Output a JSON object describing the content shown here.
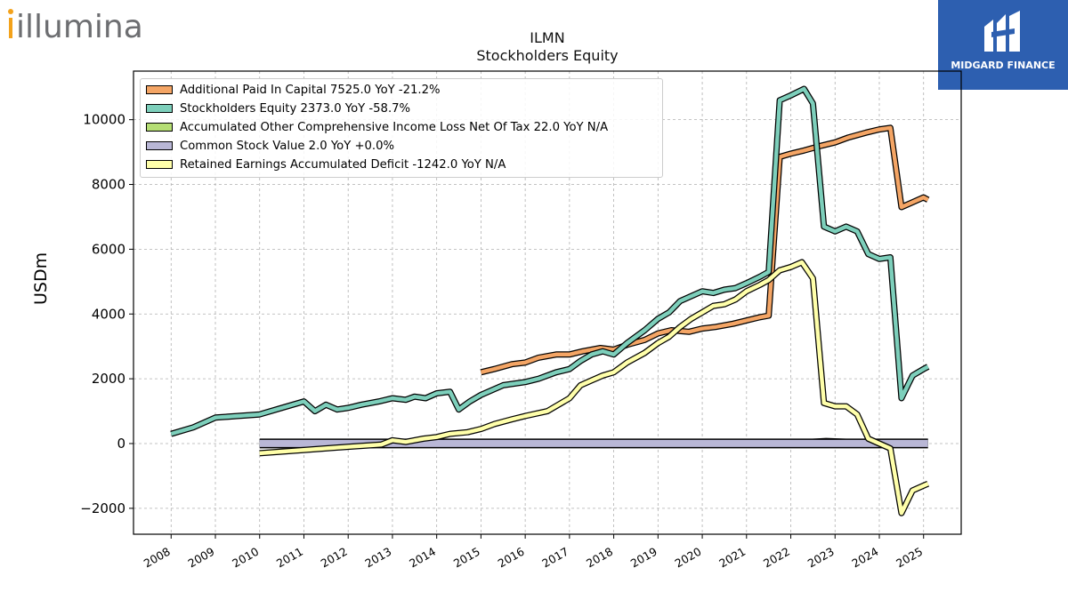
{
  "header": {
    "left_logo_text": "illumina",
    "right_logo_text": "MIDGARD FINANCE"
  },
  "chart_data": {
    "type": "line",
    "title": "ILMN",
    "subtitle": "Stockholders  Equity",
    "ylabel": "USDm",
    "xlabel": "",
    "ylim": [
      -2800,
      11500
    ],
    "xlim": [
      2007.15,
      2025.85
    ],
    "yticks": [
      -2000,
      0,
      2000,
      4000,
      6000,
      8000,
      10000
    ],
    "ytick_labels": [
      "−2000",
      "0",
      "2000",
      "4000",
      "6000",
      "8000",
      "10000"
    ],
    "xticks": [
      2008,
      2009,
      2010,
      2011,
      2012,
      2013,
      2014,
      2015,
      2016,
      2017,
      2018,
      2019,
      2020,
      2021,
      2022,
      2023,
      2024,
      2025
    ],
    "xtick_labels": [
      "2008",
      "2009",
      "2010",
      "2011",
      "2012",
      "2013",
      "2014",
      "2015",
      "2016",
      "2017",
      "2018",
      "2019",
      "2020",
      "2021",
      "2022",
      "2023",
      "2024",
      "2025"
    ],
    "grid": true,
    "legend_position": "upper-left",
    "series": [
      {
        "name": "Additional Paid In Capital  7525.0 YoY -21.2%",
        "color": "#f4a565",
        "points": [
          [
            2015.0,
            2200
          ],
          [
            2015.3,
            2300
          ],
          [
            2015.7,
            2450
          ],
          [
            2016.0,
            2500
          ],
          [
            2016.3,
            2650
          ],
          [
            2016.7,
            2750
          ],
          [
            2017.0,
            2750
          ],
          [
            2017.3,
            2850
          ],
          [
            2017.7,
            2950
          ],
          [
            2018.0,
            2900
          ],
          [
            2018.3,
            3050
          ],
          [
            2018.7,
            3200
          ],
          [
            2019.0,
            3400
          ],
          [
            2019.3,
            3500
          ],
          [
            2019.7,
            3450
          ],
          [
            2020.0,
            3550
          ],
          [
            2020.3,
            3600
          ],
          [
            2020.7,
            3700
          ],
          [
            2021.0,
            3800
          ],
          [
            2021.3,
            3900
          ],
          [
            2021.5,
            3950
          ],
          [
            2021.75,
            8850
          ],
          [
            2022.0,
            8950
          ],
          [
            2022.3,
            9050
          ],
          [
            2022.7,
            9200
          ],
          [
            2023.0,
            9300
          ],
          [
            2023.3,
            9450
          ],
          [
            2023.7,
            9600
          ],
          [
            2024.0,
            9700
          ],
          [
            2024.25,
            9750
          ],
          [
            2024.5,
            7300
          ],
          [
            2024.75,
            7450
          ],
          [
            2025.0,
            7600
          ],
          [
            2025.1,
            7525
          ]
        ]
      },
      {
        "name": "Stockholders Equity  2373.0 YoY -58.7%",
        "color": "#7dcfbb",
        "points": [
          [
            2008.0,
            300
          ],
          [
            2008.5,
            500
          ],
          [
            2009.0,
            800
          ],
          [
            2009.5,
            850
          ],
          [
            2010.0,
            900
          ],
          [
            2010.5,
            1100
          ],
          [
            2011.0,
            1300
          ],
          [
            2011.25,
            1000
          ],
          [
            2011.5,
            1200
          ],
          [
            2011.75,
            1050
          ],
          [
            2012.0,
            1100
          ],
          [
            2012.3,
            1200
          ],
          [
            2012.7,
            1300
          ],
          [
            2013.0,
            1400
          ],
          [
            2013.3,
            1350
          ],
          [
            2013.5,
            1450
          ],
          [
            2013.75,
            1400
          ],
          [
            2014.0,
            1550
          ],
          [
            2014.3,
            1600
          ],
          [
            2014.5,
            1050
          ],
          [
            2014.75,
            1300
          ],
          [
            2015.0,
            1500
          ],
          [
            2015.5,
            1800
          ],
          [
            2016.0,
            1900
          ],
          [
            2016.3,
            2000
          ],
          [
            2016.7,
            2200
          ],
          [
            2017.0,
            2300
          ],
          [
            2017.25,
            2550
          ],
          [
            2017.5,
            2750
          ],
          [
            2017.75,
            2850
          ],
          [
            2018.0,
            2750
          ],
          [
            2018.3,
            3100
          ],
          [
            2018.7,
            3500
          ],
          [
            2019.0,
            3850
          ],
          [
            2019.25,
            4050
          ],
          [
            2019.5,
            4400
          ],
          [
            2019.75,
            4550
          ],
          [
            2020.0,
            4700
          ],
          [
            2020.25,
            4650
          ],
          [
            2020.5,
            4750
          ],
          [
            2020.75,
            4800
          ],
          [
            2021.0,
            4950
          ],
          [
            2021.3,
            5150
          ],
          [
            2021.5,
            5300
          ],
          [
            2021.75,
            10600
          ],
          [
            2022.0,
            10750
          ],
          [
            2022.3,
            10950
          ],
          [
            2022.5,
            10500
          ],
          [
            2022.75,
            6700
          ],
          [
            2023.0,
            6550
          ],
          [
            2023.25,
            6700
          ],
          [
            2023.5,
            6550
          ],
          [
            2023.75,
            5850
          ],
          [
            2024.0,
            5700
          ],
          [
            2024.25,
            5750
          ],
          [
            2024.5,
            1400
          ],
          [
            2024.75,
            2100
          ],
          [
            2025.0,
            2300
          ],
          [
            2025.1,
            2373
          ]
        ]
      },
      {
        "name": "Accumulated Other Comprehensive Income Loss Net Of Tax  22.0 YoY N/A",
        "color": "#b5de74",
        "points": [
          [
            2010.0,
            0
          ],
          [
            2012.0,
            10
          ],
          [
            2014.0,
            5
          ],
          [
            2016.0,
            -10
          ],
          [
            2018.0,
            5
          ],
          [
            2020.0,
            10
          ],
          [
            2022.0,
            15
          ],
          [
            2022.8,
            80
          ],
          [
            2023.5,
            40
          ],
          [
            2024.0,
            20
          ],
          [
            2025.1,
            22
          ]
        ]
      },
      {
        "name": "Common Stock Value  2.0 YoY +0.0%",
        "color": "#b9b7d6",
        "points": [
          [
            2010.0,
            2
          ],
          [
            2025.1,
            2
          ]
        ]
      },
      {
        "name": "Retained Earnings Accumulated Deficit  -1242.0 YoY N/A",
        "color": "#ffffaa",
        "points": [
          [
            2010.0,
            -300
          ],
          [
            2011.0,
            -200
          ],
          [
            2012.0,
            -100
          ],
          [
            2012.75,
            -30
          ],
          [
            2013.0,
            100
          ],
          [
            2013.3,
            50
          ],
          [
            2013.7,
            150
          ],
          [
            2014.0,
            200
          ],
          [
            2014.3,
            300
          ],
          [
            2014.7,
            350
          ],
          [
            2015.0,
            450
          ],
          [
            2015.3,
            600
          ],
          [
            2015.7,
            750
          ],
          [
            2016.0,
            850
          ],
          [
            2016.5,
            1000
          ],
          [
            2017.0,
            1400
          ],
          [
            2017.25,
            1800
          ],
          [
            2017.5,
            1950
          ],
          [
            2017.75,
            2100
          ],
          [
            2018.0,
            2200
          ],
          [
            2018.3,
            2500
          ],
          [
            2018.7,
            2800
          ],
          [
            2019.0,
            3100
          ],
          [
            2019.25,
            3300
          ],
          [
            2019.5,
            3600
          ],
          [
            2019.75,
            3850
          ],
          [
            2020.0,
            4050
          ],
          [
            2020.25,
            4250
          ],
          [
            2020.5,
            4300
          ],
          [
            2020.75,
            4450
          ],
          [
            2021.0,
            4700
          ],
          [
            2021.3,
            4900
          ],
          [
            2021.5,
            5050
          ],
          [
            2021.75,
            5350
          ],
          [
            2022.0,
            5450
          ],
          [
            2022.25,
            5600
          ],
          [
            2022.5,
            5100
          ],
          [
            2022.75,
            1250
          ],
          [
            2023.0,
            1150
          ],
          [
            2023.25,
            1150
          ],
          [
            2023.5,
            900
          ],
          [
            2023.75,
            150
          ],
          [
            2024.0,
            0
          ],
          [
            2024.25,
            -150
          ],
          [
            2024.5,
            -2150
          ],
          [
            2024.75,
            -1450
          ],
          [
            2025.0,
            -1300
          ],
          [
            2025.1,
            -1242
          ]
        ]
      }
    ]
  }
}
